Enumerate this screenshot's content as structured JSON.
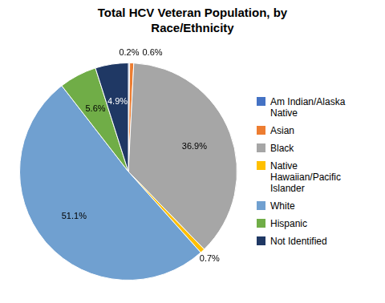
{
  "chart_data": {
    "type": "pie",
    "title": "Total HCV Veteran Population, by\nRace/Ethnicity",
    "categories": [
      "Am Indian/Alaska\nNative",
      "Asian",
      "Black",
      "Native\nHawaiian/Pacific\nIslander",
      "White",
      "Hispanic",
      "Not Identified"
    ],
    "values": [
      0.2,
      0.6,
      36.9,
      0.7,
      51.1,
      5.6,
      4.9
    ],
    "value_labels": [
      "0.2%",
      "0.6%",
      "36.9%",
      "0.7%",
      "51.1%",
      "5.6%",
      "4.9%"
    ],
    "colors": [
      "#4472c4",
      "#ed7d31",
      "#a6a6a6",
      "#ffc000",
      "#70a0d0",
      "#70ad47",
      "#1f3864"
    ],
    "data_labels": true,
    "legend": "right"
  }
}
